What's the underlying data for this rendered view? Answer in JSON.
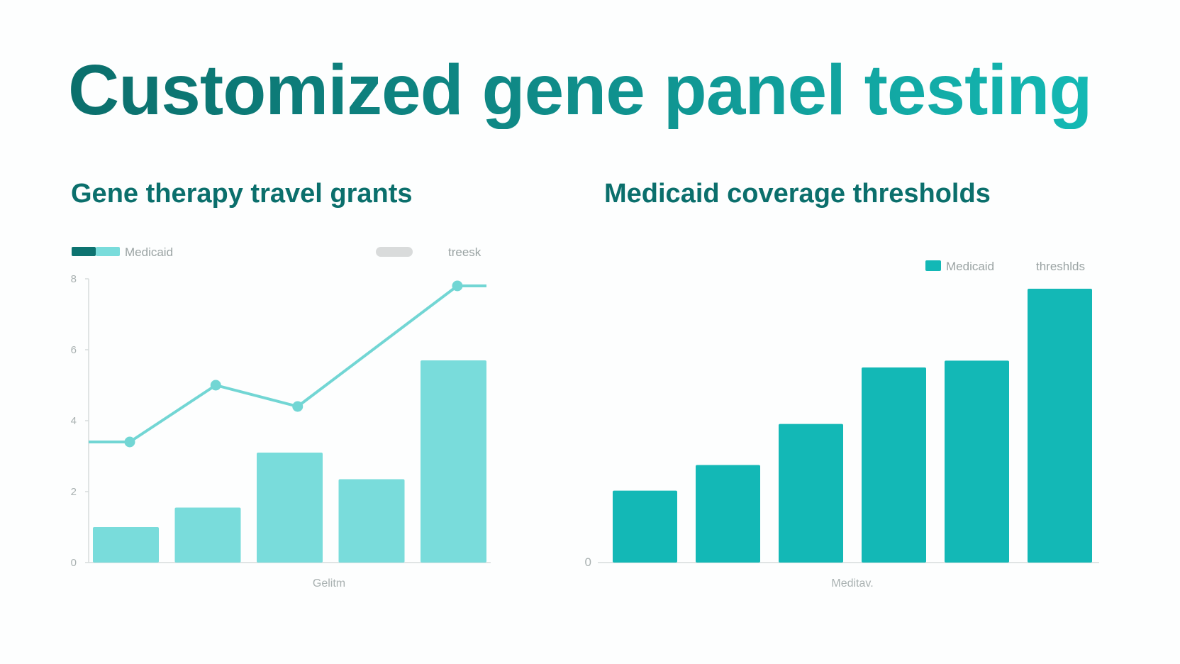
{
  "title": "Customized gene panel testing",
  "colors": {
    "title_dark": "#0b6f6c",
    "title_light": "#14b9b4",
    "left_bar": "#79dcdb",
    "left_line": "#72d6d4",
    "right_bar": "#13b8b6",
    "legend_dark": "#0d7370",
    "axis": "#d6dcdc"
  },
  "chart_data": [
    {
      "type": "bar",
      "title": "Gene therapy travel grants",
      "legend": [
        "Medicaid",
        "",
        "treesk"
      ],
      "yticks": [
        "0",
        "2",
        "4",
        "6",
        "8"
      ],
      "xlabel": "Gelitm",
      "ylim": [
        0,
        8
      ],
      "series": [
        {
          "name": "Medicaid",
          "type": "bar",
          "values": [
            1.0,
            1.55,
            3.1,
            2.35,
            5.7
          ]
        },
        {
          "name": "treesk",
          "type": "line",
          "values": [
            3.4,
            5.0,
            4.4,
            7.8
          ],
          "x_positions": [
            0.45,
            1.5,
            2.5,
            4.45
          ],
          "extends_edges": true
        }
      ],
      "grid": false,
      "legend_position": "top"
    },
    {
      "type": "bar",
      "title": "Medicaid coverage thresholds",
      "legend": [
        "Medicaid",
        "threshlds"
      ],
      "yticks": [
        "0"
      ],
      "xlabel": "Meditav.",
      "ylim": [
        0,
        8
      ],
      "series": [
        {
          "name": "Medicaid",
          "values": [
            2.1,
            2.85,
            4.05,
            5.7,
            5.9,
            8.0
          ]
        }
      ],
      "grid": false,
      "legend_position": "top-right"
    }
  ]
}
